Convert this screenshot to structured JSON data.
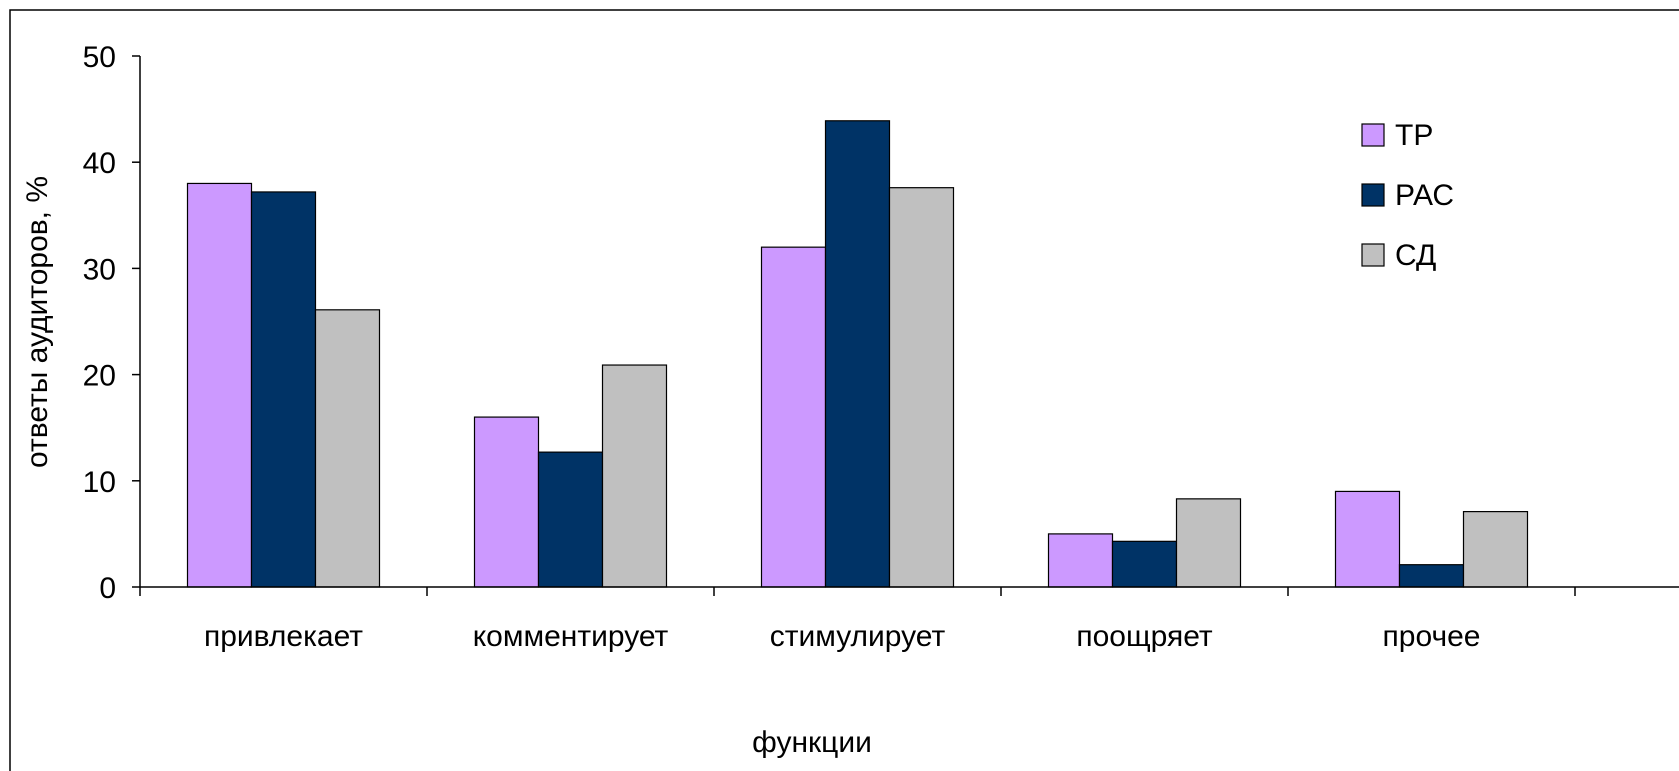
{
  "chart_data": {
    "type": "bar",
    "title": "",
    "xlabel": "функции",
    "ylabel": "ответы аудиторов, %",
    "ylim": [
      0,
      50
    ],
    "yticks": [
      "0",
      "10",
      "20",
      "30",
      "40",
      "50"
    ],
    "categories": [
      "привлекает",
      "комментирует",
      "стимулирует",
      "поощряет",
      "прочее"
    ],
    "series": [
      {
        "name": "ТР",
        "color": "#cc99ff",
        "values": [
          38,
          16,
          32,
          5,
          9
        ]
      },
      {
        "name": "РАС",
        "color": "#003366",
        "values": [
          37.2,
          12.7,
          43.9,
          4.3,
          2.1
        ]
      },
      {
        "name": "СД",
        "color": "#c0c0c0",
        "values": [
          26.1,
          20.9,
          37.6,
          8.3,
          7.1
        ]
      }
    ],
    "legend_position": "top-right",
    "grid": false
  }
}
